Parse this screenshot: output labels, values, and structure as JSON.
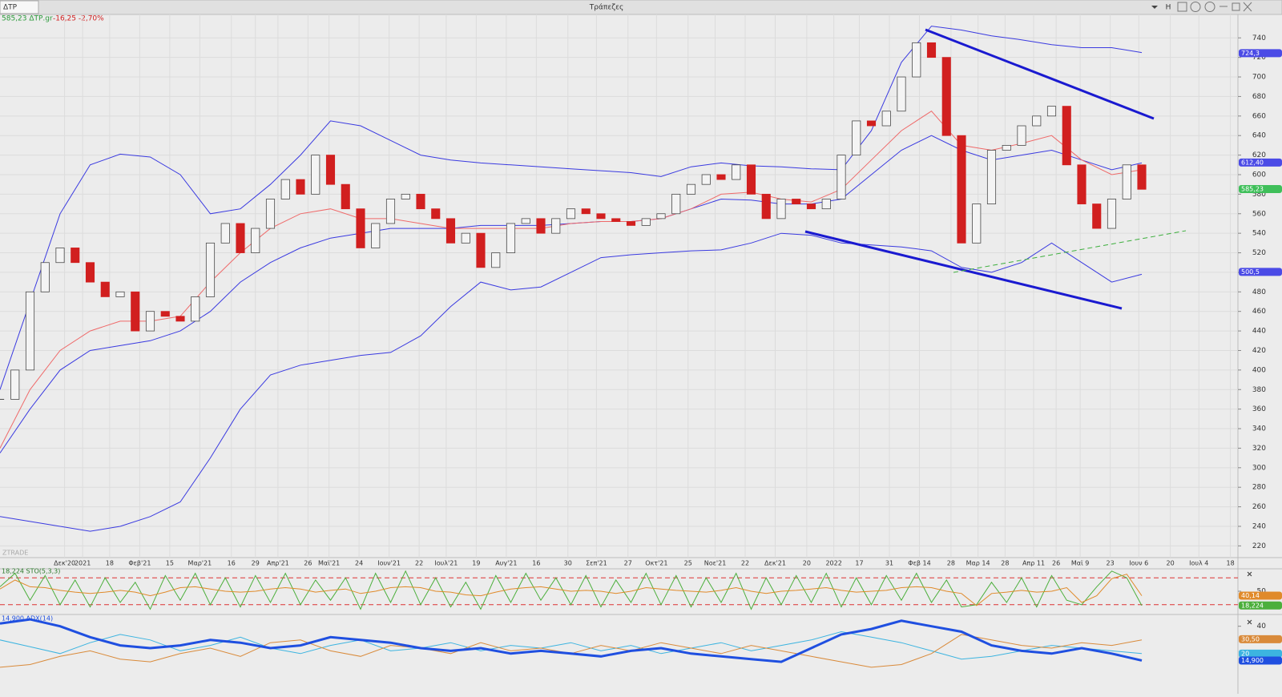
{
  "toolbar": {
    "symbol": "ΔΤΡ",
    "title": "Τράπεζες",
    "mode": "H"
  },
  "watermark": "ZTRADE",
  "chart_data": [
    {
      "type": "candlestick",
      "quote": "585,23 ΔΤΡ.gr",
      "change": "-16,25 -2,70%",
      "x": [
        0,
        1,
        2,
        3,
        4,
        5,
        6,
        7,
        8,
        9,
        10,
        11,
        12,
        13,
        14,
        15,
        16,
        17,
        18,
        19,
        20,
        21,
        22,
        23,
        24,
        25,
        26,
        27,
        28,
        29,
        30,
        31,
        32,
        33,
        34,
        35,
        36,
        37,
        38,
        39,
        40,
        41,
        42,
        43,
        44,
        45,
        46,
        47,
        48,
        49,
        50,
        51,
        52,
        53,
        54,
        55,
        56,
        57,
        58,
        59,
        60,
        61,
        62,
        63,
        64,
        65,
        66,
        67,
        68,
        69,
        70,
        71,
        72,
        73,
        74,
        75,
        76
      ],
      "close": [
        370,
        400,
        480,
        510,
        525,
        510,
        490,
        475,
        480,
        440,
        460,
        455,
        450,
        475,
        530,
        550,
        520,
        545,
        575,
        595,
        580,
        620,
        590,
        565,
        525,
        550,
        575,
        580,
        565,
        555,
        530,
        540,
        505,
        520,
        550,
        555,
        540,
        555,
        565,
        560,
        555,
        552,
        548,
        555,
        560,
        580,
        590,
        600,
        595,
        610,
        580,
        555,
        575,
        570,
        565,
        575,
        620,
        655,
        650,
        665,
        700,
        735,
        720,
        640,
        530,
        570,
        625,
        630,
        650,
        660,
        670,
        610,
        570,
        545,
        575,
        610,
        585
      ],
      "up_color": "#4a4a4a",
      "down_color": "#d11f1f",
      "series": [
        {
          "color": "#3a3ae0",
          "x": [
            0,
            2,
            4,
            6,
            8,
            10,
            12,
            14,
            16,
            18,
            20,
            22,
            24,
            26,
            28,
            30,
            32,
            34,
            36,
            38,
            40,
            42,
            44,
            46,
            48,
            50,
            52,
            54,
            56,
            58,
            60,
            62,
            64,
            66,
            68,
            70,
            72,
            74,
            76
          ],
          "values": [
            380,
            470,
            560,
            610,
            621,
            618,
            600,
            560,
            565,
            590,
            620,
            655,
            650,
            635,
            620,
            615,
            612,
            610,
            608,
            606,
            604,
            602,
            598,
            608,
            612,
            609,
            608,
            606,
            605,
            645,
            715,
            752,
            748,
            742,
            738,
            733,
            730,
            730,
            725
          ]
        },
        {
          "color": "#3a3ae0",
          "x": [
            0,
            2,
            4,
            6,
            8,
            10,
            12,
            14,
            16,
            18,
            20,
            22,
            24,
            26,
            28,
            30,
            32,
            34,
            36,
            38,
            40,
            42,
            44,
            46,
            48,
            50,
            52,
            54,
            56,
            58,
            60,
            62,
            64,
            66,
            68,
            70,
            72,
            74,
            76
          ],
          "values": [
            250,
            245,
            240,
            235,
            240,
            250,
            265,
            310,
            360,
            395,
            405,
            410,
            415,
            418,
            435,
            465,
            490,
            482,
            485,
            500,
            515,
            518,
            520,
            522,
            523,
            530,
            540,
            538,
            530,
            528,
            526,
            522,
            505,
            500,
            510,
            530,
            510,
            490,
            498
          ]
        },
        {
          "color": "#3a3ae0",
          "x": [
            0,
            2,
            4,
            6,
            8,
            10,
            12,
            14,
            16,
            18,
            20,
            22,
            24,
            26,
            28,
            30,
            32,
            34,
            36,
            38,
            40,
            42,
            44,
            46,
            48,
            50,
            52,
            54,
            56,
            58,
            60,
            62,
            64,
            66,
            68,
            70,
            72,
            74,
            76
          ],
          "values": [
            315,
            360,
            400,
            420,
            425,
            430,
            440,
            460,
            490,
            510,
            525,
            535,
            540,
            545,
            545,
            545,
            548,
            548,
            548,
            550,
            552,
            552,
            555,
            565,
            575,
            574,
            570,
            570,
            575,
            600,
            625,
            640,
            625,
            615,
            620,
            625,
            615,
            605,
            612
          ]
        },
        {
          "color": "#ef6a6a",
          "x": [
            0,
            2,
            4,
            6,
            8,
            10,
            12,
            14,
            16,
            18,
            20,
            22,
            24,
            26,
            28,
            30,
            32,
            34,
            36,
            38,
            40,
            42,
            44,
            46,
            48,
            50,
            52,
            54,
            56,
            58,
            60,
            62,
            64,
            66,
            68,
            70,
            72,
            74,
            76
          ],
          "values": [
            320,
            380,
            420,
            440,
            450,
            450,
            455,
            490,
            520,
            545,
            560,
            565,
            555,
            555,
            550,
            545,
            545,
            545,
            545,
            550,
            552,
            552,
            555,
            565,
            580,
            582,
            575,
            572,
            585,
            615,
            645,
            665,
            630,
            625,
            632,
            640,
            615,
            600,
            605
          ]
        }
      ],
      "xlim": [
        0,
        82.4
      ],
      "ylim": [
        208,
        764
      ],
      "yticks": [
        220,
        240,
        260,
        280,
        300,
        320,
        340,
        360,
        380,
        400,
        420,
        440,
        460,
        480,
        500,
        520,
        540,
        560,
        580,
        600,
        620,
        640,
        660,
        680,
        700,
        720,
        740
      ],
      "xticks": [
        {
          "value": 4.3,
          "label": "Δεκ'20"
        },
        {
          "value": 5.5,
          "label": "2021"
        },
        {
          "value": 7.3,
          "label": "18"
        },
        {
          "value": 9.3,
          "label": "Φεβ'21"
        },
        {
          "value": 11.3,
          "label": "15"
        },
        {
          "value": 13.3,
          "label": "Μαρ'21"
        },
        {
          "value": 15.4,
          "label": "16"
        },
        {
          "value": 17,
          "label": "29"
        },
        {
          "value": 18.5,
          "label": "Απρ'21"
        },
        {
          "value": 20.5,
          "label": "26"
        },
        {
          "value": 21.9,
          "label": "Μαϊ'21"
        },
        {
          "value": 23.9,
          "label": "24"
        },
        {
          "value": 25.9,
          "label": "Ιουν'21"
        },
        {
          "value": 27.9,
          "label": "22"
        },
        {
          "value": 29.7,
          "label": "Ιουλ'21"
        },
        {
          "value": 31.7,
          "label": "19"
        },
        {
          "value": 33.7,
          "label": "Αυγ'21"
        },
        {
          "value": 35.7,
          "label": "16"
        },
        {
          "value": 37.8,
          "label": "30"
        },
        {
          "value": 39.7,
          "label": "Σεπ'21"
        },
        {
          "value": 41.8,
          "label": "27"
        },
        {
          "value": 43.7,
          "label": "Οκτ'21"
        },
        {
          "value": 45.8,
          "label": "25"
        },
        {
          "value": 47.6,
          "label": "Νοε'21"
        },
        {
          "value": 49.6,
          "label": "22"
        },
        {
          "value": 51.6,
          "label": "Δεκ'21"
        },
        {
          "value": 53.7,
          "label": "20"
        },
        {
          "value": 55.5,
          "label": "2022"
        },
        {
          "value": 57.2,
          "label": "17"
        },
        {
          "value": 59.2,
          "label": "31"
        },
        {
          "value": 61.2,
          "label": "Φεβ 14"
        },
        {
          "value": 63.3,
          "label": "28"
        },
        {
          "value": 65.1,
          "label": "Μαρ 14"
        },
        {
          "value": 66.9,
          "label": "28"
        },
        {
          "value": 68.8,
          "label": "Απρ 11"
        },
        {
          "value": 70.3,
          "label": "26"
        },
        {
          "value": 71.9,
          "label": "Μαϊ 9"
        },
        {
          "value": 73.9,
          "label": "23"
        },
        {
          "value": 75.8,
          "label": "Ιουν 6"
        },
        {
          "value": 77.9,
          "label": "20"
        },
        {
          "value": 79.8,
          "label": "Ιουλ 4"
        },
        {
          "value": 81.9,
          "label": "18"
        }
      ],
      "grid": true,
      "badges": [
        {
          "value": 724.3,
          "label": "724,3",
          "color": "#4b4be6"
        },
        {
          "value": 612.4,
          "label": "612,40",
          "color": "#4b4be6"
        },
        {
          "value": 585.23,
          "label": "585,23",
          "color": "#3fbf5a"
        },
        {
          "value": 500.5,
          "label": "500,5",
          "color": "#4b4be6"
        }
      ]
    },
    {
      "type": "line",
      "title": "18,224 STO(5,3,3)",
      "x": [
        0,
        1,
        2,
        3,
        4,
        5,
        6,
        7,
        8,
        9,
        10,
        11,
        12,
        13,
        14,
        15,
        16,
        17,
        18,
        19,
        20,
        21,
        22,
        23,
        24,
        25,
        26,
        27,
        28,
        29,
        30,
        31,
        32,
        33,
        34,
        35,
        36,
        37,
        38,
        39,
        40,
        41,
        42,
        43,
        44,
        45,
        46,
        47,
        48,
        49,
        50,
        51,
        52,
        53,
        54,
        55,
        56,
        57,
        58,
        59,
        60,
        61,
        62,
        63,
        64,
        65,
        66,
        67,
        68,
        69,
        70,
        71,
        72,
        73,
        74,
        75,
        76
      ],
      "series": [
        {
          "color": "#4caf3c",
          "values": [
            60,
            90,
            30,
            85,
            20,
            75,
            15,
            80,
            25,
            70,
            10,
            85,
            30,
            90,
            20,
            80,
            15,
            85,
            25,
            90,
            20,
            75,
            30,
            80,
            10,
            90,
            25,
            95,
            20,
            80,
            15,
            70,
            10,
            85,
            25,
            90,
            30,
            80,
            20,
            85,
            15,
            75,
            25,
            90,
            20,
            85,
            15,
            80,
            25,
            90,
            10,
            80,
            20,
            85,
            25,
            90,
            15,
            80,
            20,
            85,
            30,
            90,
            25,
            75,
            15,
            20,
            70,
            25,
            80,
            15,
            85,
            30,
            20,
            60,
            95,
            80,
            18
          ]
        },
        {
          "color": "#e08a2a",
          "values": [
            55,
            75,
            60,
            58,
            52,
            48,
            45,
            48,
            52,
            48,
            40,
            48,
            58,
            60,
            55,
            50,
            48,
            50,
            55,
            58,
            55,
            48,
            52,
            55,
            45,
            50,
            58,
            60,
            58,
            50,
            48,
            42,
            40,
            48,
            55,
            58,
            60,
            55,
            50,
            52,
            50,
            45,
            50,
            58,
            55,
            52,
            50,
            48,
            52,
            58,
            50,
            45,
            50,
            52,
            55,
            58,
            52,
            48,
            50,
            52,
            58,
            60,
            58,
            50,
            45,
            18,
            45,
            48,
            52,
            48,
            50,
            58,
            25,
            40,
            78,
            88,
            40
          ]
        }
      ],
      "xlim": [
        0,
        82.4
      ],
      "ylim": [
        0,
        100
      ],
      "yticks": [
        50
      ],
      "levels": [
        20,
        80
      ],
      "badges": [
        {
          "value": 40.14,
          "label": "40,14",
          "color": "#e08a2a"
        },
        {
          "value": 18.224,
          "label": "18,224",
          "color": "#4caf3c"
        }
      ]
    },
    {
      "type": "line",
      "title": "14,900 ADX(14)",
      "x": [
        0,
        2,
        4,
        6,
        8,
        10,
        12,
        14,
        16,
        18,
        20,
        22,
        24,
        26,
        28,
        30,
        32,
        34,
        36,
        38,
        40,
        42,
        44,
        46,
        48,
        50,
        52,
        54,
        56,
        58,
        60,
        62,
        64,
        66,
        68,
        70,
        72,
        74,
        76
      ],
      "series": [
        {
          "color": "#3cb4e0",
          "width": 1,
          "values": [
            30,
            25,
            20,
            28,
            34,
            30,
            22,
            26,
            32,
            24,
            20,
            26,
            30,
            22,
            24,
            28,
            22,
            26,
            24,
            28,
            22,
            26,
            20,
            24,
            28,
            22,
            26,
            30,
            36,
            32,
            28,
            22,
            16,
            18,
            22,
            26,
            24,
            22,
            20
          ]
        },
        {
          "color": "#d98a3a",
          "width": 1,
          "values": [
            10,
            12,
            18,
            22,
            16,
            14,
            20,
            24,
            18,
            28,
            30,
            22,
            18,
            26,
            24,
            20,
            28,
            22,
            24,
            20,
            26,
            22,
            28,
            24,
            20,
            26,
            22,
            18,
            14,
            10,
            12,
            20,
            34,
            30,
            26,
            24,
            28,
            26,
            30
          ]
        },
        {
          "color": "#1f4fe0",
          "width": 3,
          "values": [
            42,
            45,
            40,
            32,
            26,
            24,
            26,
            30,
            28,
            24,
            26,
            32,
            30,
            28,
            24,
            22,
            24,
            20,
            22,
            20,
            18,
            22,
            24,
            20,
            18,
            16,
            14,
            24,
            34,
            38,
            44,
            40,
            36,
            26,
            22,
            20,
            24,
            20,
            15
          ]
        }
      ],
      "xlim": [
        0,
        82.4
      ],
      "ylim": [
        0,
        48
      ],
      "yticks": [
        40
      ],
      "badges": [
        {
          "value": 30.5,
          "label": "30,50",
          "color": "#d98a3a"
        },
        {
          "value": 20,
          "label": "20",
          "color": "#3cb4e0"
        },
        {
          "value": 14.9,
          "label": "14,900",
          "color": "#1f4fe0"
        }
      ]
    }
  ]
}
